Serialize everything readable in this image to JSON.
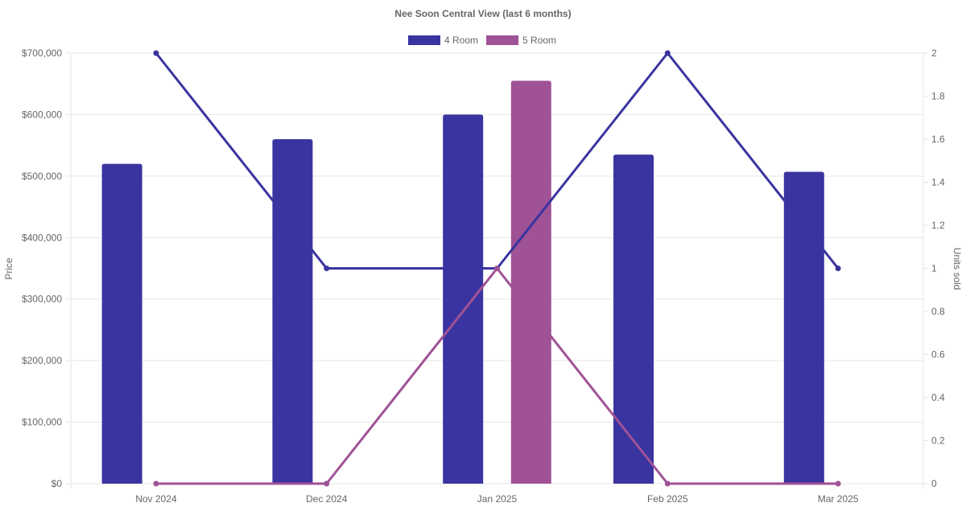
{
  "chart_data": {
    "type": "bar",
    "title": "Nee Soon Central View (last 6 months)",
    "categories": [
      "Nov 2024",
      "Dec 2024",
      "Jan 2025",
      "Feb 2025",
      "Mar 2025"
    ],
    "y_left": {
      "label": "Price",
      "min": 0,
      "max": 700000,
      "ticks": [
        0,
        100000,
        200000,
        300000,
        400000,
        500000,
        600000,
        700000
      ],
      "tick_labels": [
        "$0",
        "$100,000",
        "$200,000",
        "$300,000",
        "$400,000",
        "$500,000",
        "$600,000",
        "$700,000"
      ]
    },
    "y_right": {
      "label": "Units sold",
      "min": 0,
      "max": 2,
      "ticks": [
        0,
        0.2,
        0.4,
        0.6,
        0.8,
        1,
        1.2,
        1.4,
        1.6,
        1.8,
        2
      ],
      "tick_labels": [
        "0",
        "0.2",
        "0.4",
        "0.6",
        "0.8",
        "1",
        "1.2",
        "1.4",
        "1.6",
        "1.8",
        "2"
      ]
    },
    "legend_position": "top",
    "grid": true,
    "series": [
      {
        "name": "4 Room",
        "color": "#3a34a0",
        "bar_values": [
          520000,
          560000,
          600000,
          535000,
          507000
        ],
        "line_values": [
          2,
          1,
          1,
          2,
          1
        ]
      },
      {
        "name": "5 Room",
        "color": "#a05296",
        "bar_values": [
          null,
          null,
          655000,
          null,
          null
        ],
        "line_values": [
          0,
          0,
          1,
          0,
          0
        ]
      }
    ]
  }
}
